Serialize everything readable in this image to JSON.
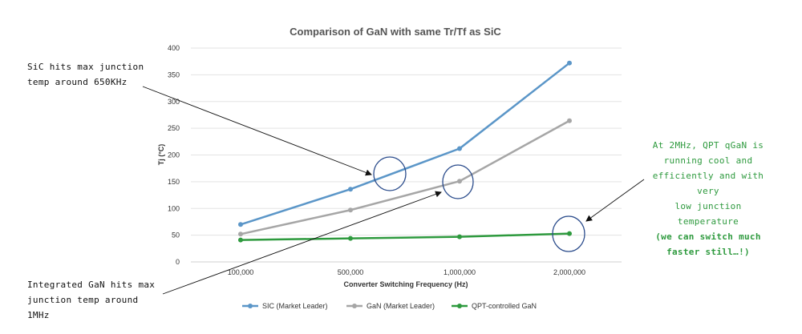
{
  "chart_data": {
    "type": "line",
    "title": "Comparison of GaN with same Tr/Tf as SiC",
    "xlabel": "Converter Switching Frequency (Hz)",
    "ylabel": "Tj (°C)",
    "categories": [
      "100,000",
      "500,000",
      "1,000,000",
      "2,000,000"
    ],
    "ylim": [
      0,
      400
    ],
    "yticks": [
      0,
      50,
      100,
      150,
      200,
      250,
      300,
      350,
      400
    ],
    "grid": true,
    "legend_position": "bottom",
    "series": [
      {
        "name": "SIC (Market Leader)",
        "color": "#5b96c8",
        "values": [
          70,
          136,
          212,
          372
        ]
      },
      {
        "name": "GaN (Market Leader)",
        "color": "#a6a6a6",
        "values": [
          52,
          97,
          151,
          264
        ]
      },
      {
        "name": "QPT-controlled GaN",
        "color": "#2e9a3e",
        "values": [
          41,
          44,
          47,
          53
        ]
      }
    ]
  },
  "annotations": {
    "sic": {
      "line1": "SiC hits max junction",
      "line2": "temp around 650KHz"
    },
    "gan": {
      "line1": "Integrated GaN hits max",
      "line2": "junction temp around",
      "line3": "1MHz"
    },
    "qpt": {
      "line1": "At 2MHz, QPT qGaN is",
      "line2": "running cool and",
      "line3": "efficiently and with very",
      "line4": "low junction temperature",
      "line5": "(we can switch much",
      "line6": "faster still…!)"
    }
  }
}
